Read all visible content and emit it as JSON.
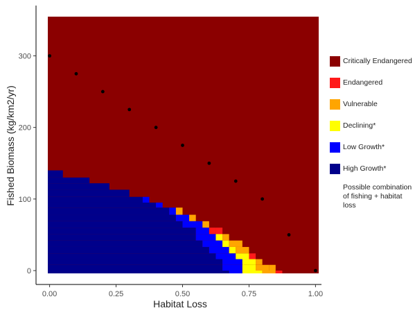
{
  "chart_data": {
    "type": "heatmap",
    "title": "",
    "xlabel": "Habitat Loss",
    "ylabel": "Fished Biomass (kg/km2/yr)",
    "xlim": [
      -0.05,
      1.03
    ],
    "ylim": [
      -15,
      355
    ],
    "x_ticks": [
      "0.00",
      "0.25",
      "0.50",
      "0.75",
      "1.00"
    ],
    "x_tick_values": [
      0,
      0.25,
      0.5,
      0.75,
      1.0
    ],
    "y_ticks": [
      "0",
      "100",
      "200",
      "300"
    ],
    "y_tick_values": [
      0,
      100,
      200,
      300
    ],
    "grid": false,
    "legend_position": "right",
    "categories": [
      {
        "label": "Critically Endangered",
        "color": "#8b0000"
      },
      {
        "label": "Endangered",
        "color": "#ff1a1a"
      },
      {
        "label": "Vulnerable",
        "color": "#ffa500"
      },
      {
        "label": "Declining*",
        "color": "#ffff00"
      },
      {
        "label": "Low Growth*",
        "color": "#0000ff"
      },
      {
        "label": "High Growth*",
        "color": "#00008b"
      }
    ],
    "background_category": "Critically Endangered",
    "bands": [
      {
        "y_top": 140,
        "steps": [
          [
            0.05,
            "High Growth*"
          ]
        ]
      },
      {
        "y_top": 130,
        "steps": [
          [
            0.15,
            "High Growth*"
          ]
        ]
      },
      {
        "y_top": 122,
        "steps": [
          [
            0.225,
            "High Growth*"
          ]
        ]
      },
      {
        "y_top": 113,
        "steps": [
          [
            0.3,
            "High Growth*"
          ]
        ]
      },
      {
        "y_top": 103,
        "steps": [
          [
            0.35,
            "High Growth*"
          ]
        ]
      },
      {
        "y_top": 103,
        "steps": [
          [
            0.35,
            "High Growth*"
          ],
          [
            0.375,
            "Low Growth*"
          ]
        ]
      },
      {
        "y_top": 95,
        "steps": [
          [
            0.4,
            "High Growth*"
          ],
          [
            0.425,
            "Low Growth*"
          ]
        ]
      },
      {
        "y_top": 88,
        "steps": [
          [
            0.45,
            "High Growth*"
          ],
          [
            0.475,
            "Low Growth*"
          ],
          [
            0.5,
            "Vulnerable"
          ]
        ]
      },
      {
        "y_top": 78,
        "steps": [
          [
            0.475,
            "High Growth*"
          ],
          [
            0.525,
            "Low Growth*"
          ],
          [
            0.55,
            "Vulnerable"
          ]
        ]
      },
      {
        "y_top": 69,
        "steps": [
          [
            0.5,
            "High Growth*"
          ],
          [
            0.575,
            "Low Growth*"
          ],
          [
            0.6,
            "Vulnerable"
          ]
        ]
      },
      {
        "y_top": 60,
        "steps": [
          [
            0.55,
            "High Growth*"
          ],
          [
            0.6,
            "Low Growth*"
          ],
          [
            0.625,
            "Yellow"
          ],
          [
            0.65,
            "Endangered"
          ]
        ]
      },
      {
        "y_top": 51,
        "steps": [
          [
            0.55,
            "High Growth*"
          ],
          [
            0.625,
            "Low Growth*"
          ],
          [
            0.65,
            "Declining*"
          ],
          [
            0.675,
            "Vulnerable"
          ]
        ]
      },
      {
        "y_top": 42,
        "steps": [
          [
            0.575,
            "High Growth*"
          ],
          [
            0.65,
            "Low Growth*"
          ],
          [
            0.675,
            "Declining*"
          ],
          [
            0.725,
            "Vulnerable"
          ]
        ]
      },
      {
        "y_top": 33,
        "steps": [
          [
            0.6,
            "High Growth*"
          ],
          [
            0.675,
            "Low Growth*"
          ],
          [
            0.7,
            "Declining*"
          ],
          [
            0.75,
            "Vulnerable"
          ]
        ]
      },
      {
        "y_top": 24,
        "steps": [
          [
            0.625,
            "High Growth*"
          ],
          [
            0.7,
            "Low Growth*"
          ],
          [
            0.75,
            "Declining*"
          ],
          [
            0.775,
            "Endangered"
          ]
        ]
      },
      {
        "y_top": 16,
        "steps": [
          [
            0.65,
            "High Growth*"
          ],
          [
            0.725,
            "Low Growth*"
          ],
          [
            0.775,
            "Declining*"
          ],
          [
            0.8,
            "Vulnerable"
          ]
        ]
      },
      {
        "y_top": 8,
        "steps": [
          [
            0.65,
            "High Growth*"
          ],
          [
            0.725,
            "Low Growth*"
          ],
          [
            0.775,
            "Declining*"
          ],
          [
            0.825,
            "Vulnerable"
          ],
          [
            0.85,
            "Vulnerable"
          ]
        ]
      },
      {
        "y_top": 0,
        "steps": [
          [
            0.675,
            "High Growth*"
          ],
          [
            0.725,
            "Low Growth*"
          ],
          [
            0.8,
            "Declining*"
          ],
          [
            0.85,
            "Vulnerable"
          ],
          [
            0.875,
            "Endangered"
          ]
        ]
      }
    ],
    "points_series": {
      "marker": "dot",
      "x": [
        0.0,
        0.1,
        0.2,
        0.3,
        0.4,
        0.5,
        0.6,
        0.7,
        0.8,
        0.9,
        1.0
      ],
      "y": [
        300,
        275,
        250,
        225,
        200,
        175,
        150,
        125,
        100,
        50,
        0
      ]
    },
    "legend_note": "Possible combination of fishing + habitat loss"
  }
}
